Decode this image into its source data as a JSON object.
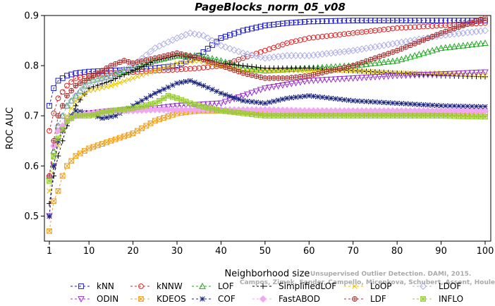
{
  "chart_data": {
    "type": "line",
    "title": "PageBlocks_norm_05_v08",
    "xlabel": "Neighborhood size",
    "ylabel": "ROC AUC",
    "xlim": [
      1,
      100
    ],
    "ylim": [
      0.45,
      0.9
    ],
    "xticks": [
      1,
      10,
      20,
      30,
      40,
      50,
      60,
      70,
      80,
      90,
      100
    ],
    "yticks": [
      0.5,
      0.6,
      0.7,
      0.8,
      0.9
    ],
    "grid": false,
    "legend_position": "bottom",
    "watermark": [
      "Campos, Zimek, Sander, Campello, Micenkova, Schubert, Assent, Houle",
      "Unsupervised Outlier Detection. DAMI, 2015."
    ],
    "series": [
      {
        "name": "kNN",
        "marker": "square",
        "color": "#1a1acc",
        "x": [
          1,
          2,
          3,
          5,
          7,
          10,
          15,
          20,
          25,
          30,
          35,
          40,
          45,
          50,
          55,
          60,
          70,
          80,
          90,
          100
        ],
        "y": [
          0.72,
          0.755,
          0.77,
          0.78,
          0.785,
          0.788,
          0.79,
          0.792,
          0.795,
          0.8,
          0.82,
          0.855,
          0.87,
          0.88,
          0.885,
          0.888,
          0.89,
          0.89,
          0.89,
          0.89
        ]
      },
      {
        "name": "kNNW",
        "marker": "circle",
        "color": "#dd2222",
        "x": [
          1,
          2,
          3,
          5,
          7,
          10,
          15,
          20,
          25,
          30,
          35,
          40,
          45,
          50,
          55,
          60,
          70,
          80,
          90,
          100
        ],
        "y": [
          0.67,
          0.705,
          0.735,
          0.76,
          0.775,
          0.78,
          0.785,
          0.787,
          0.79,
          0.792,
          0.795,
          0.8,
          0.815,
          0.83,
          0.845,
          0.855,
          0.865,
          0.875,
          0.88,
          0.885
        ]
      },
      {
        "name": "LOF",
        "marker": "triangle-up",
        "color": "#22aa22",
        "x": [
          1,
          2,
          3,
          5,
          7,
          10,
          15,
          20,
          25,
          30,
          35,
          40,
          45,
          50,
          60,
          70,
          80,
          90,
          100
        ],
        "y": [
          0.58,
          0.63,
          0.68,
          0.72,
          0.74,
          0.77,
          0.78,
          0.795,
          0.81,
          0.82,
          0.82,
          0.81,
          0.795,
          0.79,
          0.795,
          0.8,
          0.81,
          0.835,
          0.845
        ]
      },
      {
        "name": "SimplifiedLOF",
        "marker": "plus",
        "color": "#000000",
        "x": [
          1,
          2,
          3,
          5,
          7,
          10,
          15,
          20,
          25,
          30,
          35,
          40,
          45,
          50,
          60,
          70,
          80,
          90,
          100
        ],
        "y": [
          0.525,
          0.58,
          0.62,
          0.68,
          0.72,
          0.755,
          0.77,
          0.79,
          0.81,
          0.82,
          0.815,
          0.805,
          0.8,
          0.795,
          0.795,
          0.79,
          0.785,
          0.78,
          0.778
        ]
      },
      {
        "name": "LoOP",
        "marker": "x",
        "color": "#e6c200",
        "x": [
          1,
          2,
          3,
          5,
          7,
          10,
          15,
          20,
          25,
          30,
          35,
          40,
          45,
          50,
          60,
          70,
          80,
          90,
          100
        ],
        "y": [
          0.55,
          0.6,
          0.64,
          0.7,
          0.73,
          0.75,
          0.76,
          0.775,
          0.79,
          0.805,
          0.81,
          0.8,
          0.79,
          0.79,
          0.79,
          0.79,
          0.785,
          0.785,
          0.78
        ]
      },
      {
        "name": "LDOF",
        "marker": "diamond",
        "color": "#b0b0e8",
        "x": [
          1,
          2,
          3,
          5,
          7,
          10,
          15,
          20,
          25,
          30,
          33,
          36,
          40,
          45,
          50,
          55,
          60,
          70,
          80,
          90,
          100
        ],
        "y": [
          0.58,
          0.64,
          0.68,
          0.72,
          0.74,
          0.765,
          0.78,
          0.8,
          0.835,
          0.855,
          0.865,
          0.86,
          0.84,
          0.825,
          0.815,
          0.82,
          0.82,
          0.83,
          0.845,
          0.86,
          0.87
        ]
      },
      {
        "name": "ODIN",
        "marker": "triangle-down",
        "color": "#9933cc",
        "x": [
          1,
          2,
          3,
          5,
          7,
          10,
          15,
          20,
          25,
          30,
          40,
          50,
          60,
          70,
          80,
          90,
          100
        ],
        "y": [
          0.5,
          0.6,
          0.65,
          0.69,
          0.7,
          0.705,
          0.71,
          0.712,
          0.715,
          0.72,
          0.725,
          0.755,
          0.77,
          0.775,
          0.78,
          0.783,
          0.787
        ]
      },
      {
        "name": "KDEOS",
        "marker": "square-x",
        "color": "#f0a020",
        "x": [
          1,
          2,
          3,
          4,
          5,
          7,
          10,
          15,
          20,
          25,
          30,
          35,
          40,
          50,
          60,
          70,
          80,
          90,
          100
        ],
        "y": [
          0.47,
          0.53,
          0.55,
          0.58,
          0.6,
          0.62,
          0.635,
          0.65,
          0.665,
          0.69,
          0.705,
          0.71,
          0.71,
          0.705,
          0.705,
          0.705,
          0.705,
          0.705,
          0.705
        ]
      },
      {
        "name": "COF",
        "marker": "asterisk",
        "color": "#1a237e",
        "x": [
          1,
          2,
          3,
          5,
          7,
          10,
          13,
          16,
          20,
          25,
          30,
          33,
          36,
          40,
          45,
          50,
          55,
          60,
          65,
          70,
          80,
          90,
          100
        ],
        "y": [
          0.5,
          0.6,
          0.65,
          0.69,
          0.71,
          0.705,
          0.695,
          0.7,
          0.72,
          0.745,
          0.765,
          0.77,
          0.76,
          0.745,
          0.73,
          0.725,
          0.735,
          0.74,
          0.735,
          0.73,
          0.725,
          0.72,
          0.718
        ]
      },
      {
        "name": "FastABOD",
        "marker": "diamond-filled",
        "color": "#f0a8f0",
        "x": [
          1,
          2,
          3,
          5,
          7,
          10,
          15,
          20,
          25,
          30,
          40,
          50,
          60,
          70,
          80,
          90,
          100
        ],
        "y": [
          0.58,
          0.64,
          0.67,
          0.69,
          0.7,
          0.705,
          0.71,
          0.71,
          0.712,
          0.712,
          0.712,
          0.712,
          0.71,
          0.71,
          0.71,
          0.71,
          0.71
        ]
      },
      {
        "name": "LDF",
        "marker": "circle-plus",
        "color": "#aa3333",
        "x": [
          1,
          2,
          3,
          5,
          7,
          10,
          15,
          18,
          20,
          25,
          30,
          35,
          40,
          45,
          50,
          55,
          60,
          70,
          80,
          90,
          100
        ],
        "y": [
          0.58,
          0.65,
          0.7,
          0.74,
          0.76,
          0.775,
          0.8,
          0.81,
          0.805,
          0.815,
          0.825,
          0.815,
          0.8,
          0.785,
          0.775,
          0.775,
          0.78,
          0.8,
          0.83,
          0.865,
          0.895
        ]
      },
      {
        "name": "INFLO",
        "marker": "square-star",
        "color": "#99cc33",
        "x": [
          1,
          2,
          3,
          5,
          7,
          10,
          15,
          20,
          25,
          28,
          30,
          33,
          35,
          40,
          45,
          50,
          60,
          70,
          80,
          90,
          100
        ],
        "y": [
          0.57,
          0.62,
          0.655,
          0.69,
          0.7,
          0.7,
          0.71,
          0.715,
          0.725,
          0.74,
          0.735,
          0.725,
          0.72,
          0.71,
          0.705,
          0.7,
          0.7,
          0.7,
          0.7,
          0.7,
          0.698
        ]
      }
    ]
  }
}
